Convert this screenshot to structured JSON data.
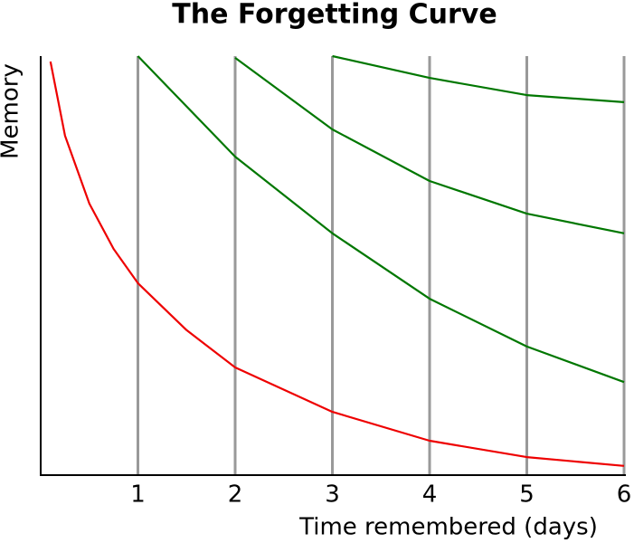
{
  "chart_data": {
    "type": "line",
    "title": "The Forgetting Curve",
    "x_label": "Time remembered (days)",
    "y_label": "Memory",
    "xlim": [
      0,
      6
    ],
    "ylim": [
      0,
      100
    ],
    "xticks": [
      1,
      2,
      3,
      4,
      5,
      6
    ],
    "grid": true,
    "series": [
      {
        "color": "#ee0000",
        "x": [
          0.1,
          0.25,
          0.5,
          0.75,
          1,
          1.5,
          2,
          3,
          4,
          5,
          6
        ],
        "values": [
          98.7,
          81,
          64.8,
          54,
          45.8,
          34.6,
          25.7,
          15.1,
          8.2,
          4.3,
          2.2
        ]
      },
      {
        "color": "#007700",
        "x": [
          1,
          2,
          3,
          4,
          5,
          6
        ],
        "values": [
          100,
          76,
          57.7,
          42.1,
          30.7,
          22.2
        ]
      },
      {
        "color": "#007700",
        "x": [
          2,
          3,
          4,
          5,
          6
        ],
        "values": [
          99.6,
          82.5,
          70.2,
          62.4,
          57.7
        ]
      },
      {
        "color": "#007700",
        "x": [
          3,
          4,
          5,
          6
        ],
        "values": [
          100,
          94.8,
          90.7,
          89
        ]
      }
    ]
  }
}
